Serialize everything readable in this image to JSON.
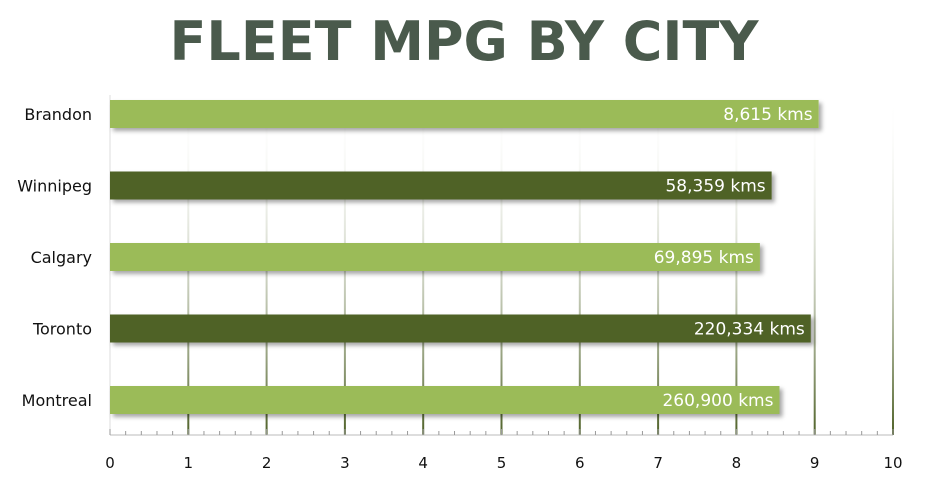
{
  "chart_data": {
    "type": "bar",
    "orientation": "horizontal",
    "title": "FLEET MPG BY CITY",
    "categories": [
      "Brandon",
      "Winnipeg",
      "Calgary",
      "Toronto",
      "Montreal"
    ],
    "values": [
      9.05,
      8.45,
      8.3,
      8.95,
      8.55
    ],
    "data_labels": [
      "8,615 kms",
      "58,359 kms",
      "69,895 kms",
      "220,334 kms",
      "260,900 kms"
    ],
    "bar_colors": [
      "#9bbb59",
      "#4f6228",
      "#9bbb59",
      "#4f6228",
      "#9bbb59"
    ],
    "xlim": [
      0,
      10
    ],
    "x_ticks": [
      "0",
      "1",
      "2",
      "3",
      "4",
      "5",
      "6",
      "7",
      "8",
      "9",
      "10"
    ],
    "xlabel": "",
    "ylabel": "",
    "grid": true,
    "legend": "none"
  }
}
